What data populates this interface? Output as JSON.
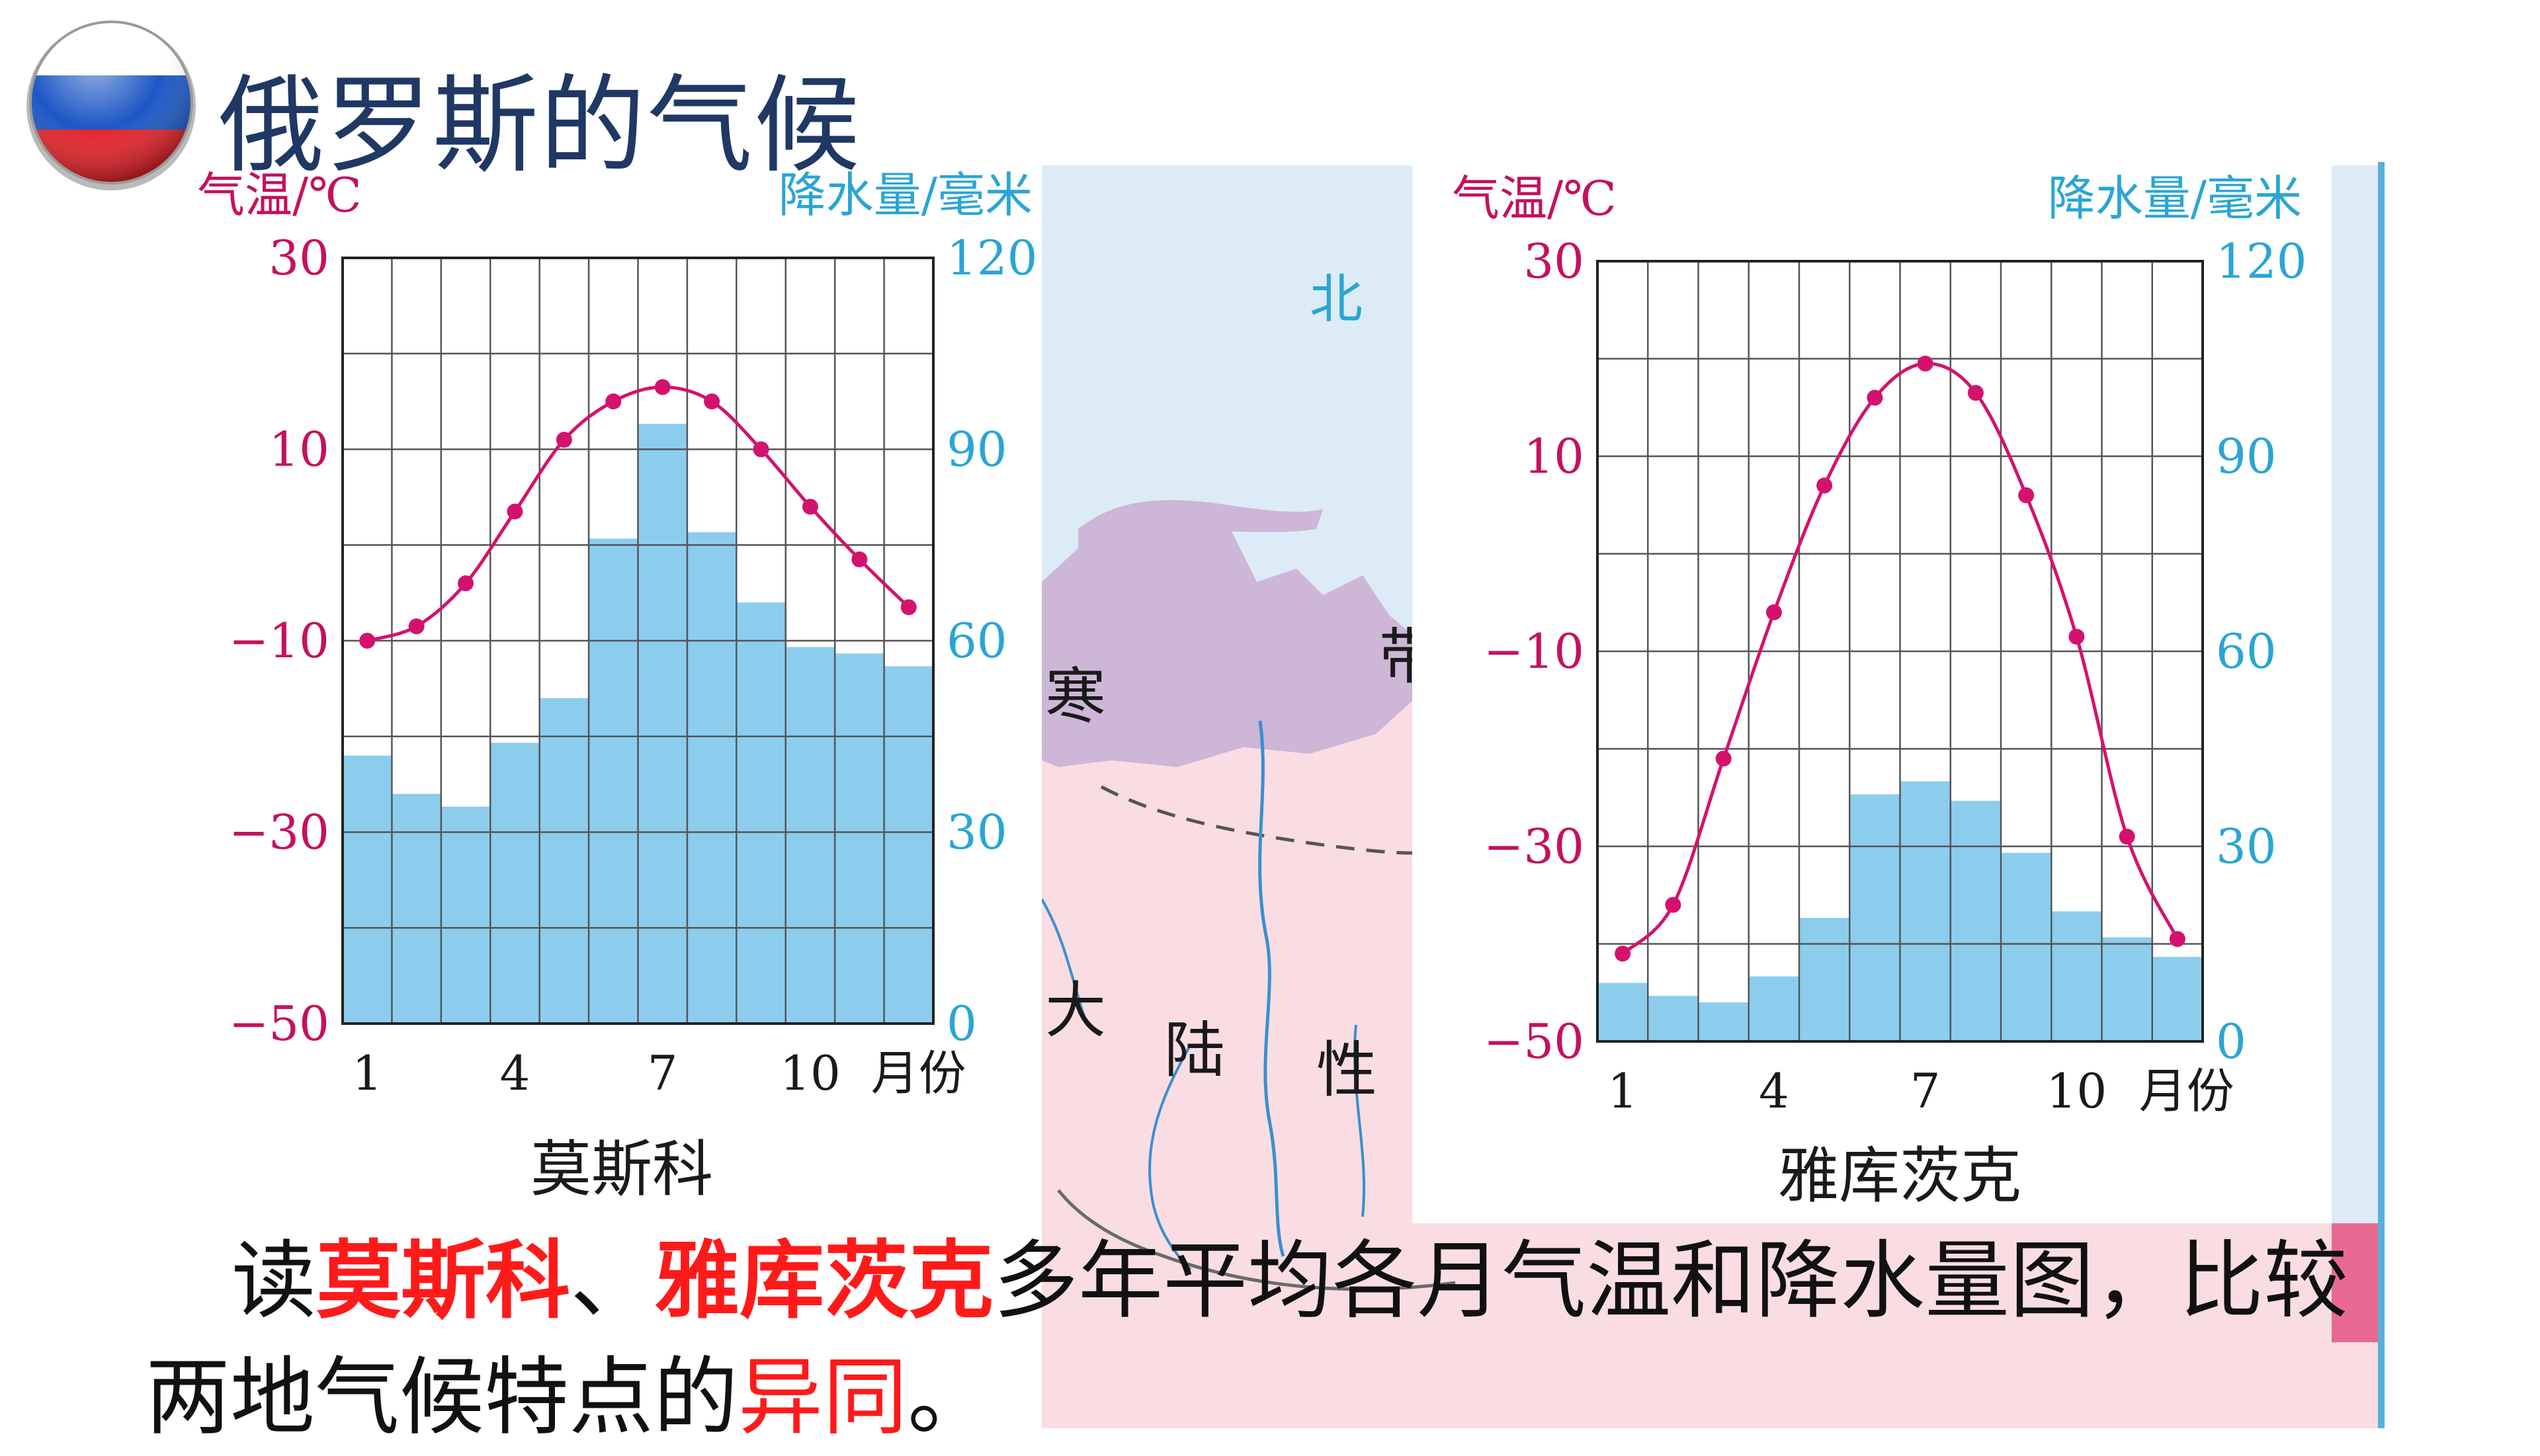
{
  "slide": {
    "title": "俄罗斯的气候",
    "flag_colors": [
      "#ffffff",
      "#1c57c4",
      "#e4232a"
    ],
    "caption": {
      "p1": "读",
      "city1": "莫斯科",
      "sep": "、",
      "city2": "雅库茨克",
      "p2": "多年平均各月气温和降水量图，比较两地气候特点的",
      "emph": "异同",
      "p3": "。"
    }
  },
  "map": {
    "labels": [
      "北",
      "寒",
      "带",
      "大",
      "陆",
      "性"
    ],
    "colors": {
      "sea": "#dcebf6",
      "tundra": "#cdb6d6",
      "land": "#f9dde3",
      "river": "#3a8fd0",
      "border": "#6a6a6a"
    }
  },
  "chart_data": [
    {
      "type": "bar+line",
      "title": "莫斯科",
      "temp_label": "气温/℃",
      "precip_label": "降水量/毫米",
      "x_label": "月份",
      "x_ticks": [
        "1",
        "4",
        "7",
        "10"
      ],
      "months": [
        1,
        2,
        3,
        4,
        5,
        6,
        7,
        8,
        9,
        10,
        11,
        12
      ],
      "temperature": [
        -10,
        -8.5,
        -4,
        3.5,
        11,
        15,
        16.5,
        15,
        10,
        4,
        -1.5,
        -6.5
      ],
      "precipitation": [
        42,
        36,
        34,
        44,
        51,
        76,
        94,
        77,
        66,
        59,
        58,
        56
      ],
      "temp_ylim": [
        -50,
        30
      ],
      "temp_ticks": [
        "30",
        "10",
        "−10",
        "−30",
        "−50"
      ],
      "precip_ylim": [
        0,
        120
      ],
      "precip_ticks": [
        "120",
        "90",
        "60",
        "30",
        "0"
      ],
      "colors": {
        "temp": "#d4126e",
        "precip": "#8ccdee",
        "grid": "#555555",
        "temp_axis": "#c4115e",
        "precip_axis": "#2aa5d4"
      }
    },
    {
      "type": "bar+line",
      "title": "雅库茨克",
      "temp_label": "气温/℃",
      "precip_label": "降水量/毫米",
      "x_label": "月份",
      "x_ticks": [
        "1",
        "4",
        "7",
        "10"
      ],
      "months": [
        1,
        2,
        3,
        4,
        5,
        6,
        7,
        8,
        9,
        10,
        11,
        12
      ],
      "temperature": [
        -41,
        -36,
        -21,
        -6,
        7,
        16,
        19.5,
        16.5,
        6,
        -8.5,
        -29,
        -39.5
      ],
      "precipitation": [
        9,
        7,
        6,
        10,
        19,
        38,
        40,
        37,
        29,
        20,
        16,
        13
      ],
      "temp_ylim": [
        -50,
        30
      ],
      "temp_ticks": [
        "30",
        "10",
        "−10",
        "−30",
        "−50"
      ],
      "precip_ylim": [
        0,
        120
      ],
      "precip_ticks": [
        "120",
        "90",
        "60",
        "30",
        "0"
      ],
      "colors": {
        "temp": "#d4126e",
        "precip": "#8ccdee",
        "grid": "#555555",
        "temp_axis": "#c4115e",
        "precip_axis": "#2aa5d4"
      }
    }
  ]
}
